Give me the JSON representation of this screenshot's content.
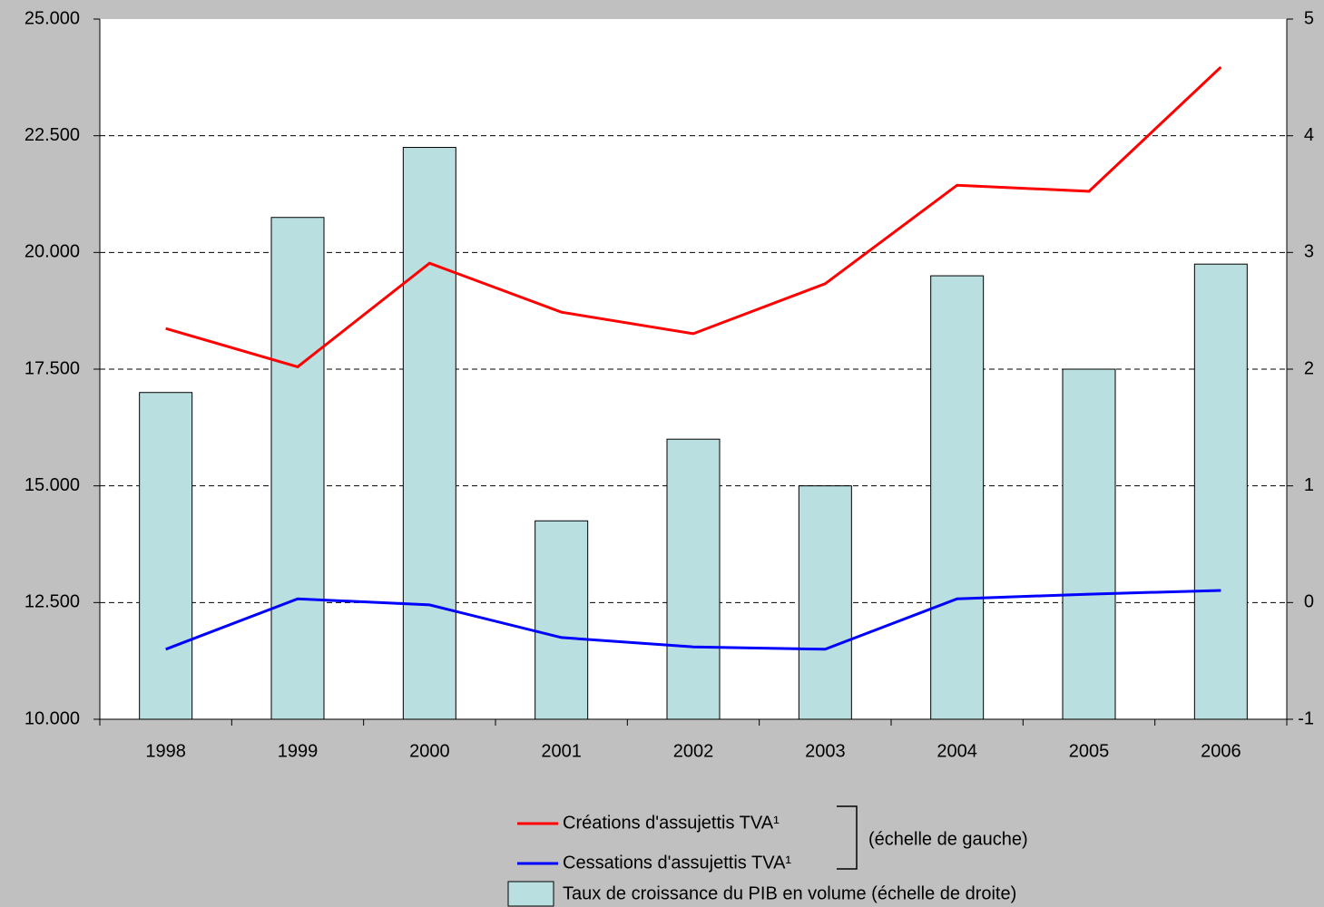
{
  "chart_data": {
    "type": "bar-line",
    "categories": [
      "1998",
      "1999",
      "2000",
      "2001",
      "2002",
      "2003",
      "2004",
      "2005",
      "2006"
    ],
    "series": [
      {
        "name": "Taux de croissance du PIB en volume (échelle de droite)",
        "type": "bar",
        "axis": "y2",
        "color": "#b9dfe0",
        "values": [
          1.8,
          3.3,
          3.9,
          0.7,
          1.4,
          1.0,
          2.8,
          2.0,
          2.9
        ]
      },
      {
        "name": "Créations d'assujettis TVA¹",
        "type": "line",
        "color": "#ff0000",
        "values": [
          18370,
          17550,
          19770,
          18720,
          18260,
          19330,
          21440,
          21310,
          23970
        ]
      },
      {
        "name": "Cessations d'assujettis TVA¹",
        "type": "line",
        "color": "#0000ff",
        "values": [
          11500,
          12580,
          12450,
          11750,
          11550,
          11500,
          12580,
          12680,
          12760
        ]
      }
    ],
    "legend_note": "(échelle de gauche)",
    "ylim": [
      10000,
      25000
    ],
    "yticks": [
      {
        "value": 10000,
        "label": "10.000"
      },
      {
        "value": 12500,
        "label": "12.500"
      },
      {
        "value": 15000,
        "label": "15.000"
      },
      {
        "value": 17500,
        "label": "17.500"
      },
      {
        "value": 20000,
        "label": "20.000"
      },
      {
        "value": 22500,
        "label": "22.500"
      },
      {
        "value": 25000,
        "label": "25.000"
      }
    ],
    "y2lim": [
      -1,
      5
    ],
    "y2ticks": [
      -1,
      0,
      1,
      2,
      3,
      4,
      5
    ],
    "grid": true
  }
}
